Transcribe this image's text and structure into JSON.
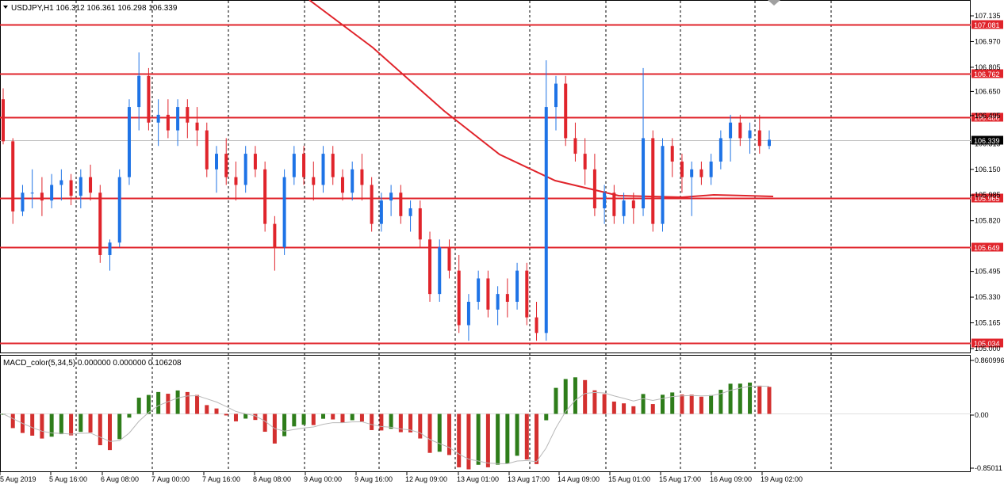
{
  "header": {
    "symbol_line": "USDJPY,H1  106.312 106.361 106.298 106.339"
  },
  "indicator": {
    "label": "MACD_color(5,34,5) 0.000000 0.000000 0.106208"
  },
  "colors": {
    "bull": "#1e73e6",
    "bear": "#e0242b",
    "level": "#e0242b",
    "ma": "#e0242b",
    "grid": "#000000",
    "hist_up": "#2e7d1a",
    "hist_down": "#d3302f",
    "signal": "#b8b8b8"
  },
  "price_axis": {
    "ticks": [
      "107.135",
      "106.970",
      "106.805",
      "106.650",
      "106.495",
      "106.315",
      "106.150",
      "105.985",
      "105.820",
      "105.495",
      "105.330",
      "105.165",
      "105.000"
    ]
  },
  "levels": [
    {
      "value": 107.081,
      "label": "107.081"
    },
    {
      "value": 106.762,
      "label": "106.762"
    },
    {
      "value": 106.486,
      "label": "106.486"
    },
    {
      "value": 105.965,
      "label": "105.965"
    },
    {
      "value": 105.649,
      "label": "105.649"
    },
    {
      "value": 105.034,
      "label": "105.034"
    }
  ],
  "current_price": {
    "value": 106.339,
    "label": "106.339"
  },
  "macd_axis": {
    "ticks": [
      "0.860996",
      "0.00",
      "-0.85011"
    ]
  },
  "time_axis": {
    "labels": [
      "5 Aug 2019",
      "5 Aug 16:00",
      "6 Aug 08:00",
      "7 Aug 00:00",
      "7 Aug 16:00",
      "8 Aug 08:00",
      "9 Aug 00:00",
      "9 Aug 16:00",
      "12 Aug 09:00",
      "13 Aug 01:00",
      "13 Aug 17:00",
      "14 Aug 09:00",
      "15 Aug 01:00",
      "15 Aug 17:00",
      "16 Aug 09:00",
      "19 Aug 02:00"
    ]
  },
  "chart_data": {
    "type": "candlestick",
    "symbol": "USDJPY",
    "timeframe": "H1",
    "ylim": [
      105.0,
      107.135
    ],
    "grid": true,
    "ohlc_approx": [
      [
        106.6,
        106.67,
        106.31,
        106.33
      ],
      [
        106.33,
        106.35,
        105.8,
        105.88
      ],
      [
        105.88,
        106.05,
        105.85,
        106.0
      ],
      [
        106.0,
        106.15,
        105.9,
        106.0
      ],
      [
        106.0,
        106.1,
        105.85,
        105.95
      ],
      [
        105.95,
        106.12,
        105.9,
        106.05
      ],
      [
        106.05,
        106.15,
        105.95,
        106.08
      ],
      [
        106.08,
        106.12,
        105.92,
        105.98
      ],
      [
        105.98,
        106.15,
        105.9,
        106.1
      ],
      [
        106.1,
        106.18,
        105.95,
        106.0
      ],
      [
        106.0,
        106.05,
        105.55,
        105.6
      ],
      [
        105.6,
        105.7,
        105.5,
        105.68
      ],
      [
        105.68,
        106.15,
        105.65,
        106.1
      ],
      [
        106.1,
        106.6,
        106.05,
        106.55
      ],
      [
        106.55,
        106.9,
        106.4,
        106.75
      ],
      [
        106.75,
        106.8,
        106.4,
        106.45
      ],
      [
        106.45,
        106.6,
        106.3,
        106.5
      ],
      [
        106.5,
        106.6,
        106.35,
        106.4
      ],
      [
        106.4,
        106.6,
        106.3,
        106.55
      ],
      [
        106.55,
        106.6,
        106.35,
        106.45
      ],
      [
        106.45,
        106.55,
        106.3,
        106.4
      ],
      [
        106.4,
        106.45,
        106.1,
        106.15
      ],
      [
        106.15,
        106.3,
        106.0,
        106.25
      ],
      [
        106.25,
        106.35,
        106.05,
        106.1
      ],
      [
        106.1,
        106.2,
        105.95,
        106.05
      ],
      [
        106.05,
        106.3,
        106.0,
        106.25
      ],
      [
        106.25,
        106.3,
        106.1,
        106.15
      ],
      [
        106.15,
        106.2,
        105.75,
        105.8
      ],
      [
        105.8,
        105.85,
        105.5,
        105.65
      ],
      [
        105.65,
        106.15,
        105.6,
        106.1
      ],
      [
        106.1,
        106.3,
        106.05,
        106.25
      ],
      [
        106.25,
        106.3,
        106.05,
        106.1
      ],
      [
        106.1,
        106.2,
        105.95,
        106.05
      ],
      [
        106.05,
        106.3,
        106.0,
        106.25
      ],
      [
        106.25,
        106.3,
        106.05,
        106.1
      ],
      [
        106.1,
        106.15,
        105.95,
        106.0
      ],
      [
        106.0,
        106.2,
        105.95,
        106.15
      ],
      [
        106.15,
        106.25,
        105.95,
        106.05
      ],
      [
        106.05,
        106.1,
        105.75,
        105.8
      ],
      [
        105.8,
        106.0,
        105.75,
        105.95
      ],
      [
        105.95,
        106.05,
        105.85,
        106.0
      ],
      [
        106.0,
        106.05,
        105.8,
        105.85
      ],
      [
        105.85,
        105.95,
        105.75,
        105.9
      ],
      [
        105.9,
        105.95,
        105.65,
        105.7
      ],
      [
        105.7,
        105.75,
        105.3,
        105.35
      ],
      [
        105.35,
        105.7,
        105.3,
        105.65
      ],
      [
        105.65,
        105.7,
        105.45,
        105.5
      ],
      [
        105.5,
        105.6,
        105.1,
        105.15
      ],
      [
        105.15,
        105.35,
        105.05,
        105.3
      ],
      [
        105.3,
        105.5,
        105.25,
        105.45
      ],
      [
        105.45,
        105.5,
        105.2,
        105.25
      ],
      [
        105.25,
        105.4,
        105.15,
        105.35
      ],
      [
        105.35,
        105.45,
        105.2,
        105.3
      ],
      [
        105.3,
        105.55,
        105.25,
        105.5
      ],
      [
        105.5,
        105.55,
        105.15,
        105.2
      ],
      [
        105.2,
        105.3,
        105.05,
        105.1
      ],
      [
        105.1,
        106.85,
        105.05,
        106.55
      ],
      [
        106.55,
        106.75,
        106.4,
        106.7
      ],
      [
        106.7,
        106.75,
        106.3,
        106.35
      ],
      [
        106.35,
        106.45,
        106.2,
        106.25
      ],
      [
        106.25,
        106.35,
        106.05,
        106.15
      ],
      [
        106.15,
        106.25,
        105.85,
        105.9
      ],
      [
        105.9,
        106.05,
        105.8,
        106.0
      ],
      [
        106.0,
        106.05,
        105.8,
        105.85
      ],
      [
        105.85,
        106.0,
        105.8,
        105.95
      ],
      [
        105.95,
        106.0,
        105.8,
        105.9
      ],
      [
        105.9,
        106.8,
        105.85,
        106.35
      ],
      [
        106.35,
        106.4,
        105.75,
        105.8
      ],
      [
        105.8,
        106.35,
        105.75,
        106.3
      ],
      [
        106.3,
        106.35,
        106.1,
        106.2
      ],
      [
        106.2,
        106.25,
        106.0,
        106.1
      ],
      [
        106.1,
        106.2,
        105.85,
        106.15
      ],
      [
        106.15,
        106.2,
        106.05,
        106.1
      ],
      [
        106.1,
        106.25,
        106.05,
        106.2
      ],
      [
        106.2,
        106.4,
        106.15,
        106.35
      ],
      [
        106.35,
        106.5,
        106.2,
        106.45
      ],
      [
        106.45,
        106.5,
        106.3,
        106.35
      ],
      [
        106.35,
        106.45,
        106.25,
        106.4
      ],
      [
        106.4,
        106.5,
        106.25,
        106.3
      ],
      [
        106.3,
        106.4,
        106.28,
        106.34
      ]
    ]
  }
}
